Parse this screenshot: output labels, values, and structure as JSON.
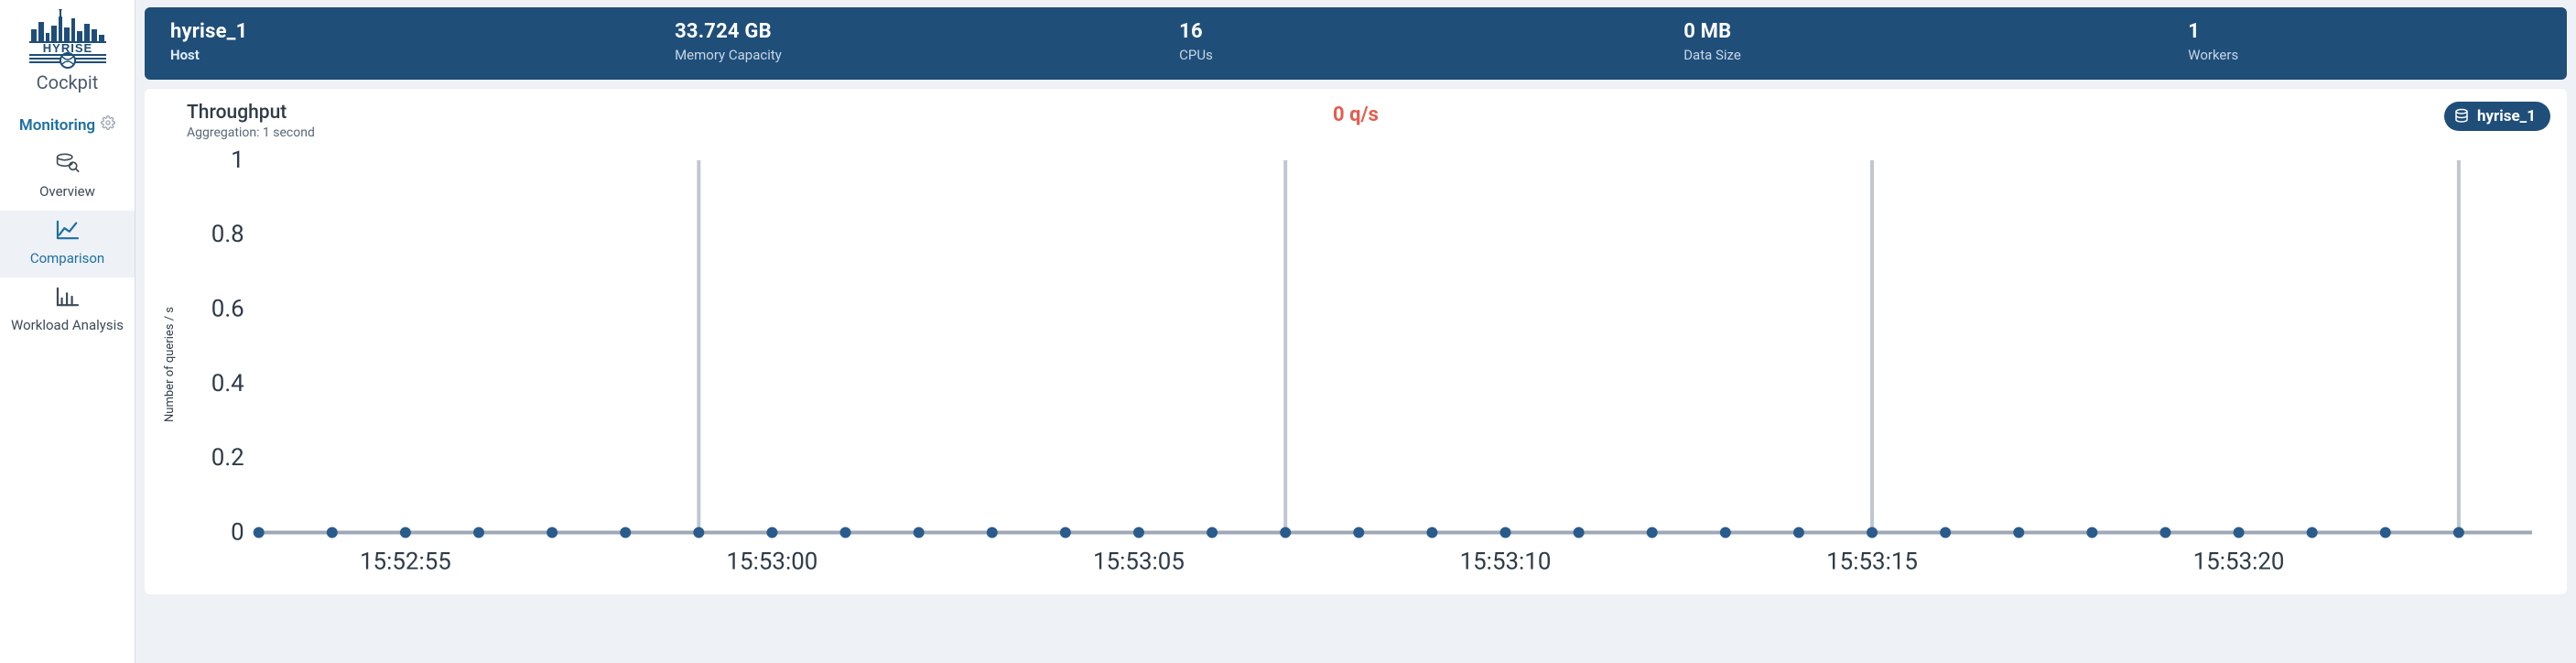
{
  "brand": {
    "logo_top": "HYRISE",
    "cockpit_label": "Cockpit"
  },
  "nav": {
    "section_title": "Monitoring",
    "items": [
      {
        "key": "overview",
        "label": "Overview",
        "icon": "db-search"
      },
      {
        "key": "comparison",
        "label": "Comparison",
        "icon": "line-chart",
        "active": true
      },
      {
        "key": "workload",
        "label": "Workload Analysis",
        "icon": "bar-chart"
      }
    ]
  },
  "metrics": {
    "host": {
      "value": "hyrise_1",
      "label": "Host"
    },
    "memory": {
      "value": "33.724 GB",
      "label": "Memory Capacity"
    },
    "cpus": {
      "value": "16",
      "label": "CPUs"
    },
    "data_size": {
      "value": "0 MB",
      "label": "Data Size"
    },
    "workers": {
      "value": "1",
      "label": "Workers"
    }
  },
  "chart": {
    "title": "Throughput",
    "aggregation": "Aggregation: 1 second",
    "qps_text": "0 q/s",
    "qps_color": "#e35d4d",
    "legend_series": "hyrise_1",
    "y_axis_title": "Number of queries / s",
    "type": "line",
    "background_color": "#ffffff",
    "marker_color": "#2a5b8d",
    "gridline_color": "#bfc7d1",
    "axis_color": "#9fa9b5",
    "ylim": [
      0,
      1
    ],
    "yticks": [
      0,
      0.2,
      0.4,
      0.6,
      0.8,
      1
    ],
    "ytick_labels": [
      "0",
      "0.2",
      "0.4",
      "0.6",
      "0.8",
      "1"
    ],
    "x_tick_step_seconds": 5,
    "x_tick_labels": [
      "15:52:55",
      "15:53:00",
      "15:53:05",
      "15:53:10",
      "15:53:15",
      "15:53:20"
    ],
    "x_tick_seconds": [
      55,
      60,
      65,
      70,
      75,
      80
    ],
    "x_range_seconds": [
      53,
      84
    ],
    "vertical_gridlines_at_seconds": [
      59,
      67,
      75,
      83
    ],
    "data_points_seconds": [
      53,
      54,
      55,
      56,
      57,
      58,
      59,
      60,
      61,
      62,
      63,
      64,
      65,
      66,
      67,
      68,
      69,
      70,
      71,
      72,
      73,
      74,
      75,
      76,
      77,
      78,
      79,
      80,
      81,
      82,
      83
    ],
    "data_values": [
      0,
      0,
      0,
      0,
      0,
      0,
      0,
      0,
      0,
      0,
      0,
      0,
      0,
      0,
      0,
      0,
      0,
      0,
      0,
      0,
      0,
      0,
      0,
      0,
      0,
      0,
      0,
      0,
      0,
      0,
      0
    ],
    "marker_radius": 3
  }
}
